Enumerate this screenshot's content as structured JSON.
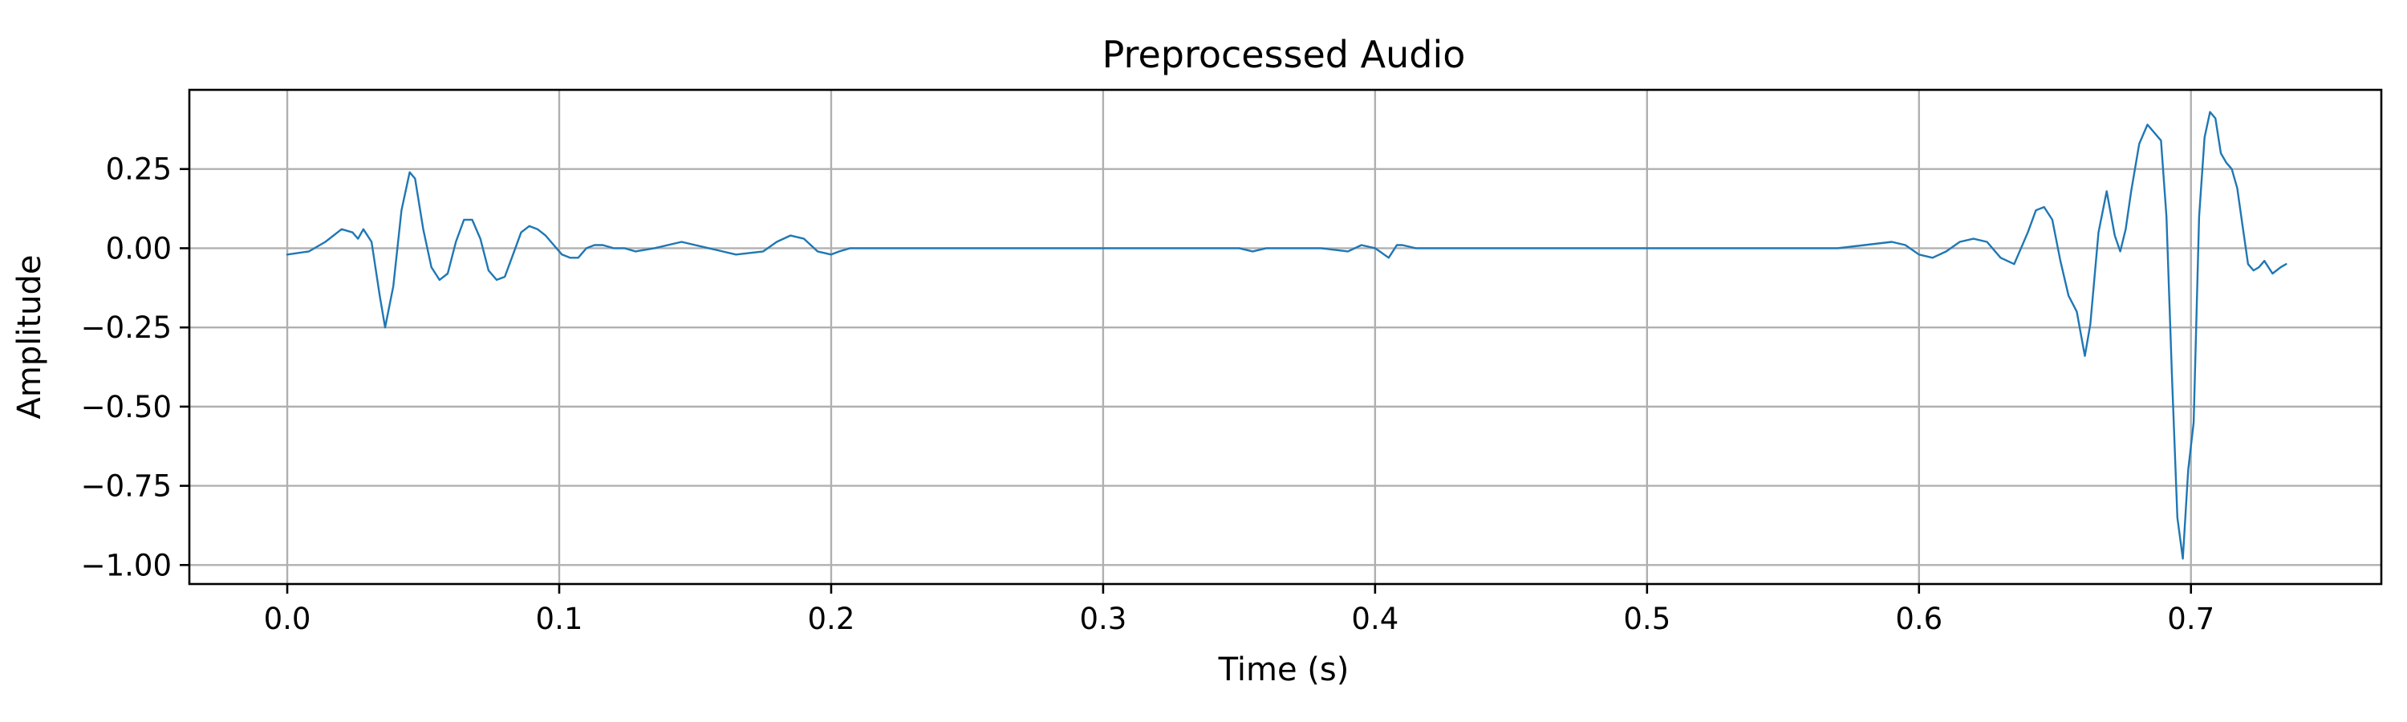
{
  "chart_data": {
    "type": "line",
    "title": "Preprocessed Audio",
    "xlabel": "Time (s)",
    "ylabel": "Amplitude",
    "xlim": [
      -0.036,
      0.77
    ],
    "ylim": [
      -1.06,
      0.5
    ],
    "x_ticks": [
      0.0,
      0.1,
      0.2,
      0.3,
      0.4,
      0.5,
      0.6,
      0.7
    ],
    "x_tick_labels": [
      "0.0",
      "0.1",
      "0.2",
      "0.3",
      "0.4",
      "0.5",
      "0.6",
      "0.7"
    ],
    "y_ticks": [
      0.25,
      0.0,
      -0.25,
      -0.5,
      -0.75,
      -1.0
    ],
    "y_tick_labels": [
      "0.25",
      "0.00",
      "−0.25",
      "−0.50",
      "−0.75",
      "−1.00"
    ],
    "grid": true,
    "line_color": "#1f77b4",
    "series": [
      {
        "x": [
          0.0,
          0.008,
          0.014,
          0.02,
          0.024,
          0.026,
          0.028,
          0.031,
          0.034,
          0.036,
          0.039,
          0.042,
          0.045,
          0.047,
          0.05,
          0.053,
          0.056,
          0.059,
          0.062,
          0.065,
          0.068,
          0.071,
          0.074,
          0.077,
          0.08,
          0.083,
          0.086,
          0.089,
          0.092,
          0.095,
          0.098,
          0.101,
          0.104,
          0.107,
          0.11,
          0.113,
          0.116,
          0.12,
          0.124,
          0.128,
          0.135,
          0.145,
          0.155,
          0.165,
          0.175,
          0.18,
          0.185,
          0.19,
          0.195,
          0.2,
          0.203,
          0.207,
          0.21,
          0.215,
          0.22,
          0.23,
          0.25,
          0.26,
          0.3,
          0.35,
          0.355,
          0.36,
          0.38,
          0.39,
          0.395,
          0.4,
          0.405,
          0.408,
          0.41,
          0.415,
          0.42,
          0.45,
          0.5,
          0.55,
          0.57,
          0.58,
          0.59,
          0.595,
          0.6,
          0.605,
          0.61,
          0.615,
          0.62,
          0.625,
          0.63,
          0.635,
          0.64,
          0.643,
          0.646,
          0.649,
          0.652,
          0.655,
          0.658,
          0.661,
          0.663,
          0.666,
          0.669,
          0.672,
          0.674,
          0.676,
          0.678,
          0.681,
          0.684,
          0.687,
          0.689,
          0.691,
          0.693,
          0.695,
          0.697,
          0.699,
          0.701,
          0.703,
          0.705,
          0.707,
          0.709,
          0.711,
          0.713,
          0.715,
          0.717,
          0.719,
          0.721,
          0.723,
          0.725,
          0.727,
          0.73,
          0.733,
          0.735
        ],
        "y": [
          -0.02,
          -0.01,
          0.02,
          0.06,
          0.05,
          0.03,
          0.06,
          0.02,
          -0.15,
          -0.25,
          -0.12,
          0.12,
          0.24,
          0.22,
          0.06,
          -0.06,
          -0.1,
          -0.08,
          0.02,
          0.09,
          0.09,
          0.03,
          -0.07,
          -0.1,
          -0.09,
          -0.02,
          0.05,
          0.07,
          0.06,
          0.04,
          0.01,
          -0.02,
          -0.03,
          -0.03,
          0.0,
          0.01,
          0.01,
          0.0,
          0.0,
          -0.01,
          0.0,
          0.02,
          0.0,
          -0.02,
          -0.01,
          0.02,
          0.04,
          0.03,
          -0.01,
          -0.02,
          -0.01,
          0.0,
          0.0,
          0.0,
          0.0,
          0.0,
          0.0,
          0.0,
          0.0,
          0.0,
          -0.01,
          0.0,
          0.0,
          -0.01,
          0.01,
          0.0,
          -0.03,
          0.01,
          0.01,
          0.0,
          0.0,
          0.0,
          0.0,
          0.0,
          0.0,
          0.01,
          0.02,
          0.01,
          -0.02,
          -0.03,
          -0.01,
          0.02,
          0.03,
          0.02,
          -0.03,
          -0.05,
          0.05,
          0.12,
          0.13,
          0.09,
          -0.04,
          -0.15,
          -0.2,
          -0.34,
          -0.24,
          0.05,
          0.18,
          0.04,
          -0.01,
          0.06,
          0.18,
          0.33,
          0.39,
          0.36,
          0.34,
          0.1,
          -0.4,
          -0.85,
          -0.98,
          -0.7,
          -0.55,
          0.1,
          0.35,
          0.43,
          0.41,
          0.3,
          0.27,
          0.25,
          0.19,
          0.07,
          -0.05,
          -0.07,
          -0.06,
          -0.04,
          -0.08,
          -0.06,
          -0.05
        ]
      }
    ]
  }
}
